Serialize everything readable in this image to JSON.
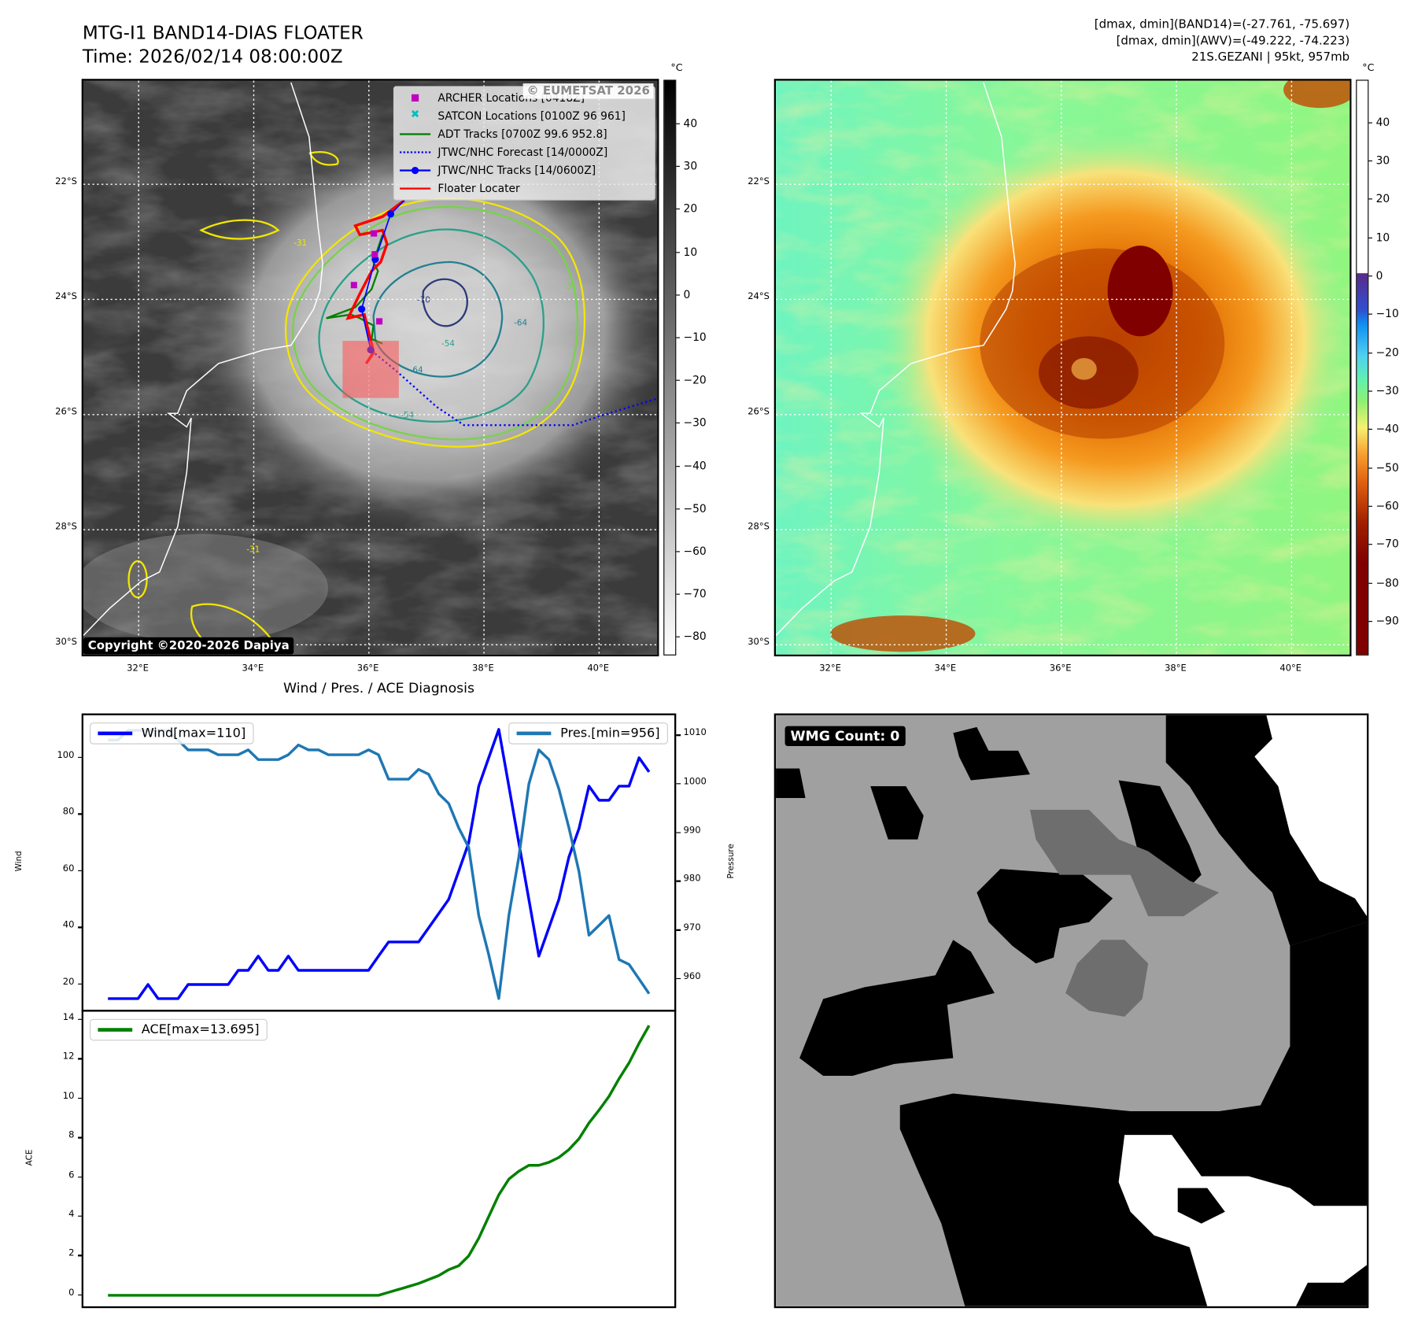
{
  "header": {
    "title": "MTG-I1 BAND14-DIAS FLOATER",
    "time": "Time: 2026/02/14 08:00:00Z",
    "stats": [
      "[dmax, dmin](BAND14)=(-27.761, -75.697)",
      "[dmax, dmin](AWV)=(-49.222, -74.223)",
      "21S.GEZANI | 95kt, 957mb"
    ]
  },
  "maps": {
    "lat_labels": [
      "22°S",
      "24°S",
      "26°S",
      "28°S",
      "30°S"
    ],
    "lat_values": [
      22,
      24,
      26,
      28,
      30
    ],
    "lon_labels": [
      "32°E",
      "34°E",
      "36°E",
      "38°E",
      "40°E"
    ],
    "lon_values": [
      32,
      34,
      36,
      38,
      40
    ],
    "lon_range": [
      31.04,
      41.04
    ],
    "lat_range": [
      20.2,
      30.2
    ],
    "unit": "°C",
    "watermark": "© EUMETSAT 2026",
    "copyright": "Copyright ©2020-2026 Dapiya",
    "contour_labels": [
      "-31",
      "-54",
      "-64",
      "-70",
      "-54",
      "-64",
      "-31",
      "-31"
    ],
    "legend": [
      {
        "label": "ARCHER Locations [0418Z]",
        "symbol": "square",
        "color": "#c000c0"
      },
      {
        "label": "SATCON Locations [0100Z 96 961]",
        "symbol": "x",
        "color": "#00c0c0"
      },
      {
        "label": "ADT Tracks [0700Z 99.6 952.8]",
        "symbol": "line",
        "color": "#008000"
      },
      {
        "label": "JTWC/NHC Forecast [14/0000Z]",
        "symbol": "dotted",
        "color": "#0000ff"
      },
      {
        "label": "JTWC/NHC Tracks [14/0600Z]",
        "symbol": "line-dot",
        "color": "#0000ff"
      },
      {
        "label": "Floater Locater",
        "symbol": "line",
        "color": "#ff0000"
      }
    ],
    "left_colorbar": {
      "ticks": [
        "40",
        "30",
        "20",
        "10",
        "0",
        "−10",
        "−20",
        "−30",
        "−40",
        "−50",
        "−60",
        "−70",
        "−80"
      ],
      "values": [
        40,
        30,
        20,
        10,
        0,
        -10,
        -20,
        -30,
        -40,
        -50,
        -60,
        -70,
        -80
      ],
      "range": [
        50.2,
        -84.4
      ]
    },
    "right_colorbar": {
      "ticks": [
        "40",
        "30",
        "20",
        "10",
        "0",
        "−10",
        "−20",
        "−30",
        "−40",
        "−50",
        "−60",
        "−70",
        "−80",
        "−90"
      ],
      "values": [
        40,
        30,
        20,
        10,
        0,
        -10,
        -20,
        -30,
        -40,
        -50,
        -60,
        -70,
        -80,
        -90
      ],
      "range": [
        51,
        -99
      ]
    }
  },
  "wmg": {
    "label": "WMG Count: 0"
  },
  "chart_data": [
    {
      "type": "line",
      "title": "Wind / Pres. / ACE Diagnosis",
      "ylabel": "Wind",
      "ylabel_right": "Pressure",
      "xlim": [
        -2.45,
        56.7
      ],
      "ylim": [
        10.4,
        115
      ],
      "ylim_right": [
        953.3,
        1014.1
      ],
      "yticks": [
        20,
        40,
        60,
        80,
        100
      ],
      "yticks_right": [
        960,
        970,
        980,
        990,
        1000,
        1010
      ],
      "series": [
        {
          "name": "Wind[max=110]",
          "axis": "left",
          "color": "#0000ff",
          "legend": "top-left",
          "values": [
            15,
            15,
            15,
            15,
            20,
            15,
            15,
            15,
            20,
            20,
            20,
            20,
            20,
            25,
            25,
            30,
            25,
            25,
            30,
            25,
            25,
            25,
            25,
            25,
            25,
            25,
            25,
            30,
            35,
            35,
            35,
            35,
            40,
            45,
            50,
            60,
            70,
            90,
            100,
            110,
            90,
            70,
            50,
            30,
            40,
            50,
            65,
            75,
            90,
            85,
            85,
            90,
            90,
            100,
            95
          ]
        },
        {
          "name": "Pres.[min=956]",
          "axis": "right",
          "color": "#1f77b4",
          "legend": "top-right",
          "values": [
            1009,
            1009,
            1011,
            1011,
            1011,
            1011,
            1011,
            1009,
            1007,
            1007,
            1007,
            1006,
            1006,
            1006,
            1007,
            1005,
            1005,
            1005,
            1006,
            1008,
            1007,
            1007,
            1006,
            1006,
            1006,
            1006,
            1007,
            1006,
            1001,
            1001,
            1001,
            1003,
            1002,
            998,
            996,
            991,
            987,
            973,
            965,
            956,
            973,
            985,
            1000,
            1007,
            1005,
            999,
            991,
            982,
            969,
            971,
            973,
            964,
            963,
            960,
            957
          ]
        }
      ]
    },
    {
      "type": "line",
      "ylabel": "ACE",
      "xlim": [
        -2.45,
        56.7
      ],
      "ylim": [
        -0.65,
        14.4
      ],
      "yticks": [
        0,
        2,
        4,
        6,
        8,
        10,
        12,
        14
      ],
      "series": [
        {
          "name": "ACE[max=13.695]",
          "color": "#008000",
          "legend": "top-left",
          "values": [
            0,
            0,
            0,
            0,
            0,
            0,
            0,
            0,
            0,
            0,
            0,
            0,
            0,
            0,
            0,
            0,
            0,
            0,
            0,
            0,
            0,
            0,
            0,
            0,
            0,
            0,
            0,
            0,
            0.15,
            0.3,
            0.45,
            0.6,
            0.8,
            1.0,
            1.3,
            1.5,
            2.0,
            2.9,
            4.0,
            5.1,
            5.9,
            6.3,
            6.6,
            6.6,
            6.75,
            7.0,
            7.4,
            7.95,
            8.75,
            9.4,
            10.1,
            11.0,
            11.8,
            12.8,
            13.695
          ]
        }
      ]
    }
  ]
}
